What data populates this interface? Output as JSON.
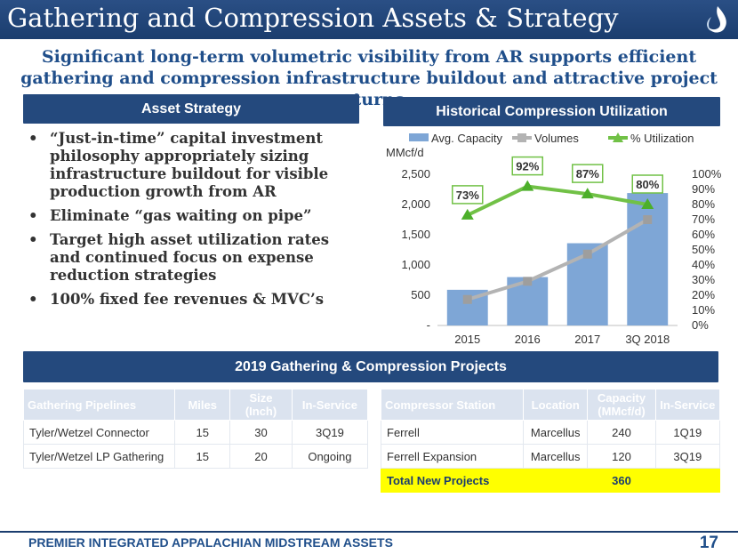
{
  "slide": {
    "title": "Gathering and Compression Assets & Strategy",
    "subtitle": "Significant long-term volumetric visibility from AR supports efficient gathering and compression infrastructure buildout and attractive project returns",
    "footer": "PREMIER INTEGRATED APPALACHIAN MIDSTREAM ASSETS",
    "page_number": "17"
  },
  "strategy": {
    "header": "Asset Strategy",
    "bullets": [
      "“Just-in-time” capital investment philosophy appropriately sizing infrastructure buildout for visible production growth from AR",
      "Eliminate “gas waiting on pipe”",
      "Target high asset utilization rates and continued focus on expense reduction strategies",
      "100% fixed fee revenues & MVC’s"
    ]
  },
  "chart_header": "Historical Compression Utilization",
  "chart_data": {
    "type": "bar",
    "categories": [
      "2015",
      "2016",
      "2017",
      "3Q 2018"
    ],
    "unit_label": "MMcf/d",
    "ylim": [
      0,
      2500
    ],
    "y_ticks": [
      "-",
      "500",
      "1,000",
      "1,500",
      "2,000",
      "2,500"
    ],
    "y2lim": [
      0,
      100
    ],
    "y2_ticks": [
      "0%",
      "10%",
      "20%",
      "30%",
      "40%",
      "50%",
      "60%",
      "70%",
      "80%",
      "90%",
      "100%"
    ],
    "legend_position": "top",
    "series": [
      {
        "name": "Avg. Capacity",
        "type": "bar",
        "axis": "left",
        "color": "#7ea6d6",
        "values": [
          590,
          800,
          1360,
          2190
        ]
      },
      {
        "name": "Volumes",
        "type": "line",
        "axis": "left",
        "color": "#b3b3b3",
        "values": [
          430,
          730,
          1180,
          1750
        ]
      },
      {
        "name": "% Utilization",
        "type": "line",
        "axis": "right",
        "color": "#71c146",
        "values": [
          73,
          92,
          87,
          80
        ],
        "labels": [
          "73%",
          "92%",
          "87%",
          "80%"
        ]
      }
    ]
  },
  "projects_header": "2019 Gathering & Compression Projects",
  "gathering_table": {
    "headers": [
      "Gathering Pipelines",
      "Miles",
      "Size (Inch)",
      "In-Service"
    ],
    "rows": [
      [
        "Tyler/Wetzel Connector",
        "15",
        "30",
        "3Q19"
      ],
      [
        "Tyler/Wetzel LP Gathering",
        "15",
        "20",
        "Ongoing"
      ]
    ]
  },
  "compressor_table": {
    "headers": [
      "Compressor Station",
      "Location",
      "Capacity (MMcf/d)",
      "In-Service"
    ],
    "rows": [
      [
        "Ferrell",
        "Marcellus",
        "240",
        "1Q19"
      ],
      [
        "Ferrell Expansion",
        "Marcellus",
        "120",
        "3Q19"
      ]
    ],
    "total": [
      "Total New Projects",
      "",
      "360",
      ""
    ]
  },
  "colors": {
    "navy": "#1b3d6e",
    "header_blue": "#24497d",
    "total_highlight": "#ffff00"
  }
}
